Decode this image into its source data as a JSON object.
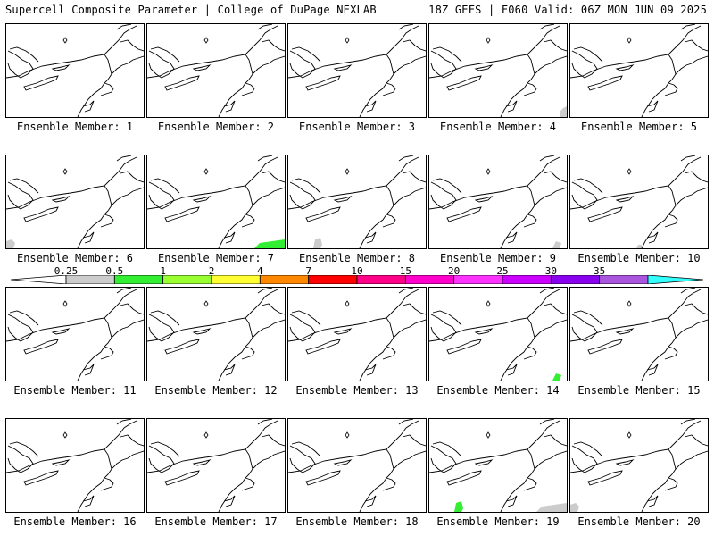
{
  "header": {
    "left": "Supercell Composite Parameter | College of DuPage NEXLAB",
    "right": "18Z GEFS | F060 Valid: 06Z MON JUN 09 2025"
  },
  "members": [
    {
      "label": "Ensemble Member: 1",
      "blobs": []
    },
    {
      "label": "Ensemble Member: 2",
      "blobs": []
    },
    {
      "label": "Ensemble Member: 3",
      "blobs": []
    },
    {
      "label": "Ensemble Member: 4",
      "blobs": [
        {
          "color": "#cccccc",
          "level": "0.25"
        }
      ]
    },
    {
      "label": "Ensemble Member: 5",
      "blobs": []
    },
    {
      "label": "Ensemble Member: 6",
      "blobs": [
        {
          "color": "#cccccc",
          "level": "0.25"
        }
      ]
    },
    {
      "label": "Ensemble Member: 7",
      "blobs": [
        {
          "color": "#33ee33",
          "level": "0.5"
        }
      ]
    },
    {
      "label": "Ensemble Member: 8",
      "blobs": [
        {
          "color": "#cccccc",
          "level": "0.25"
        }
      ]
    },
    {
      "label": "Ensemble Member: 9",
      "blobs": [
        {
          "color": "#cccccc",
          "level": "0.25"
        }
      ]
    },
    {
      "label": "Ensemble Member: 10",
      "blobs": [
        {
          "color": "#cccccc",
          "level": "0.25"
        }
      ]
    },
    {
      "label": "Ensemble Member: 11",
      "blobs": []
    },
    {
      "label": "Ensemble Member: 12",
      "blobs": []
    },
    {
      "label": "Ensemble Member: 13",
      "blobs": []
    },
    {
      "label": "Ensemble Member: 14",
      "blobs": [
        {
          "color": "#33ee33",
          "level": "0.5"
        }
      ]
    },
    {
      "label": "Ensemble Member: 15",
      "blobs": []
    },
    {
      "label": "Ensemble Member: 16",
      "blobs": []
    },
    {
      "label": "Ensemble Member: 17",
      "blobs": []
    },
    {
      "label": "Ensemble Member: 18",
      "blobs": []
    },
    {
      "label": "Ensemble Member: 19",
      "blobs": [
        {
          "color": "#cccccc",
          "level": "0.25"
        },
        {
          "color": "#33ee33",
          "level": "0.5"
        }
      ]
    },
    {
      "label": "Ensemble Member: 20",
      "blobs": [
        {
          "color": "#cccccc",
          "level": "0.25"
        }
      ]
    }
  ],
  "colorbar": {
    "ticks": [
      "0.25",
      "0.5",
      "1",
      "2",
      "4",
      "7",
      "10",
      "15",
      "20",
      "25",
      "30",
      "35"
    ],
    "colors": [
      "#cccccc",
      "#33ee33",
      "#99ff33",
      "#ffff33",
      "#ff8800",
      "#ff0000",
      "#ff0088",
      "#ff00cc",
      "#ff33ff",
      "#cc00ff",
      "#8800ee",
      "#aa55dd"
    ],
    "min_color": "#ffffff",
    "max_color": "#33ffff"
  }
}
